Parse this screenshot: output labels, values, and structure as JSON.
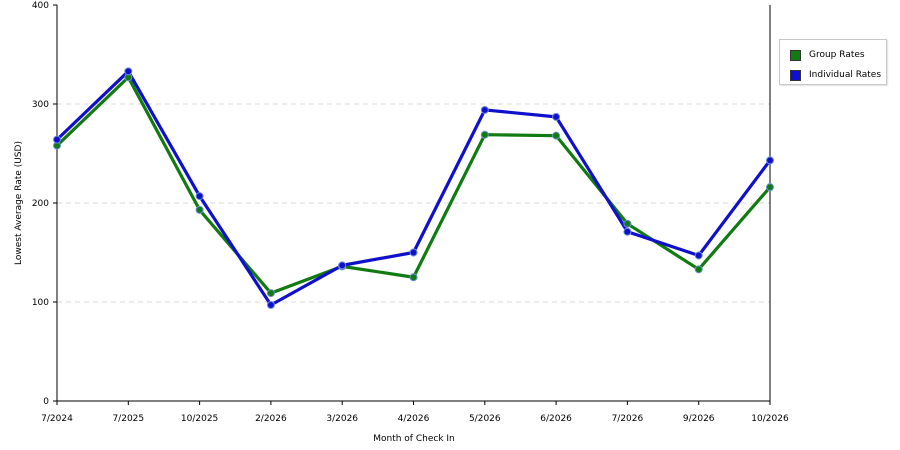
{
  "chart_data": {
    "type": "line",
    "xlabel": "Month of Check In",
    "ylabel": "Lowest Average Rate (USD)",
    "categories": [
      "7/2024",
      "7/2025",
      "10/2025",
      "2/2026",
      "3/2026",
      "4/2026",
      "5/2026",
      "6/2026",
      "7/2026",
      "9/2026",
      "10/2026"
    ],
    "ylim": [
      0,
      400
    ],
    "yticks": [
      "0",
      "100",
      "200",
      "300",
      "400"
    ],
    "grid": true,
    "legend_position": "right",
    "series": [
      {
        "name": "Group Rates",
        "color": "#117a11",
        "values": [
          258,
          327,
          193,
          109,
          136,
          125,
          269,
          268,
          179,
          133,
          216
        ]
      },
      {
        "name": "Individual Rates",
        "color": "#1010cc",
        "values": [
          264,
          333,
          207,
          97,
          137,
          150,
          294,
          287,
          171,
          147,
          243
        ]
      }
    ]
  }
}
